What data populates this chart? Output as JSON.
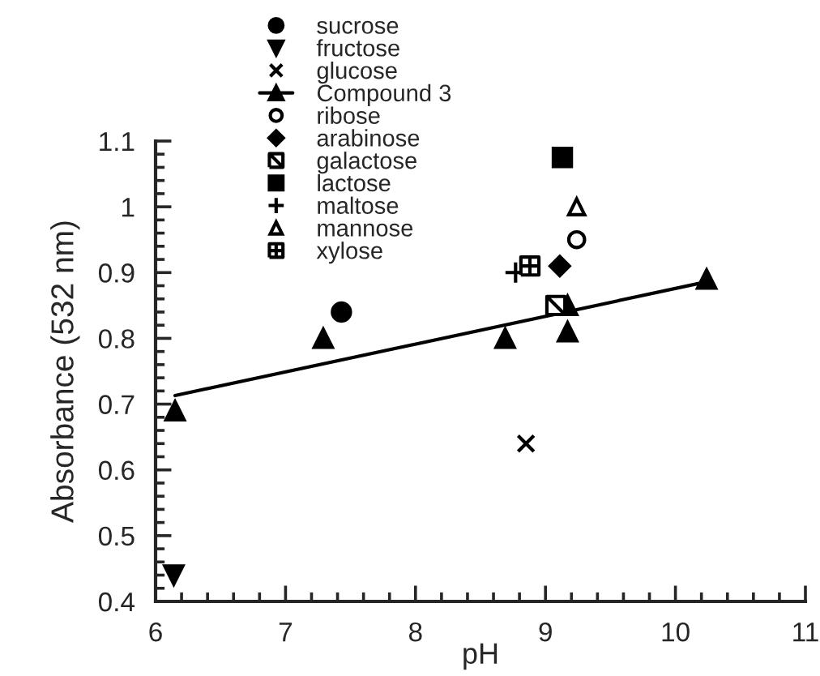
{
  "chart_data": {
    "type": "scatter",
    "xlabel": "pH",
    "ylabel": "Absorbance (532 nm)",
    "xlim": [
      6,
      11
    ],
    "xticks": [
      6,
      7,
      8,
      9,
      10,
      11
    ],
    "ylim": [
      0.4,
      1.1
    ],
    "yticks": [
      0.4,
      0.5,
      0.6,
      0.7,
      0.8,
      0.9,
      1,
      1.1
    ],
    "grid": false,
    "legend": "top",
    "series": [
      {
        "name": "sucrose",
        "marker": "circle",
        "color": "#000000",
        "x": [
          7.43
        ],
        "values": [
          0.84
        ]
      },
      {
        "name": "fructose",
        "marker": "triangle",
        "color": "#000000",
        "x": [
          6.14
        ],
        "values": [
          0.44
        ]
      },
      {
        "name": "glucose",
        "marker": "cross",
        "color": "#000000",
        "x": [
          8.85
        ],
        "values": [
          0.64
        ]
      },
      {
        "name": "Compound 3",
        "marker": "triangle",
        "color": "#000000",
        "x": [
          6.15,
          7.29,
          8.69,
          9.17,
          9.17,
          10.24
        ],
        "values": [
          0.69,
          0.8,
          0.8,
          0.81,
          0.85,
          0.89
        ]
      },
      {
        "type": "line",
        "color": "#000000",
        "x": [
          6.15,
          10.24
        ],
        "values": [
          0.713,
          0.886
        ]
      },
      {
        "name": "ribose",
        "marker": "circle",
        "color": "#000000",
        "x": [
          9.24
        ],
        "values": [
          0.95
        ]
      },
      {
        "name": "arabinose",
        "marker": "diamond",
        "color": "#000000",
        "x": [
          9.11
        ],
        "values": [
          0.91
        ]
      },
      {
        "name": "galactose",
        "color": "#000000",
        "x": [
          9.08
        ],
        "values": [
          0.85
        ]
      },
      {
        "name": "lactose",
        "marker": "square",
        "color": "#000000",
        "x": [
          9.13
        ],
        "values": [
          1.075
        ]
      },
      {
        "name": "maltose",
        "marker": "cross",
        "color": "#000000",
        "x": [
          8.77
        ],
        "values": [
          0.9
        ]
      },
      {
        "name": "mannose",
        "marker": "triangle",
        "color": "#000000",
        "x": [
          9.24
        ],
        "values": [
          1.0
        ]
      },
      {
        "name": "xylose",
        "color": "#000000",
        "x": [
          8.88
        ],
        "values": [
          0.91
        ]
      }
    ]
  }
}
